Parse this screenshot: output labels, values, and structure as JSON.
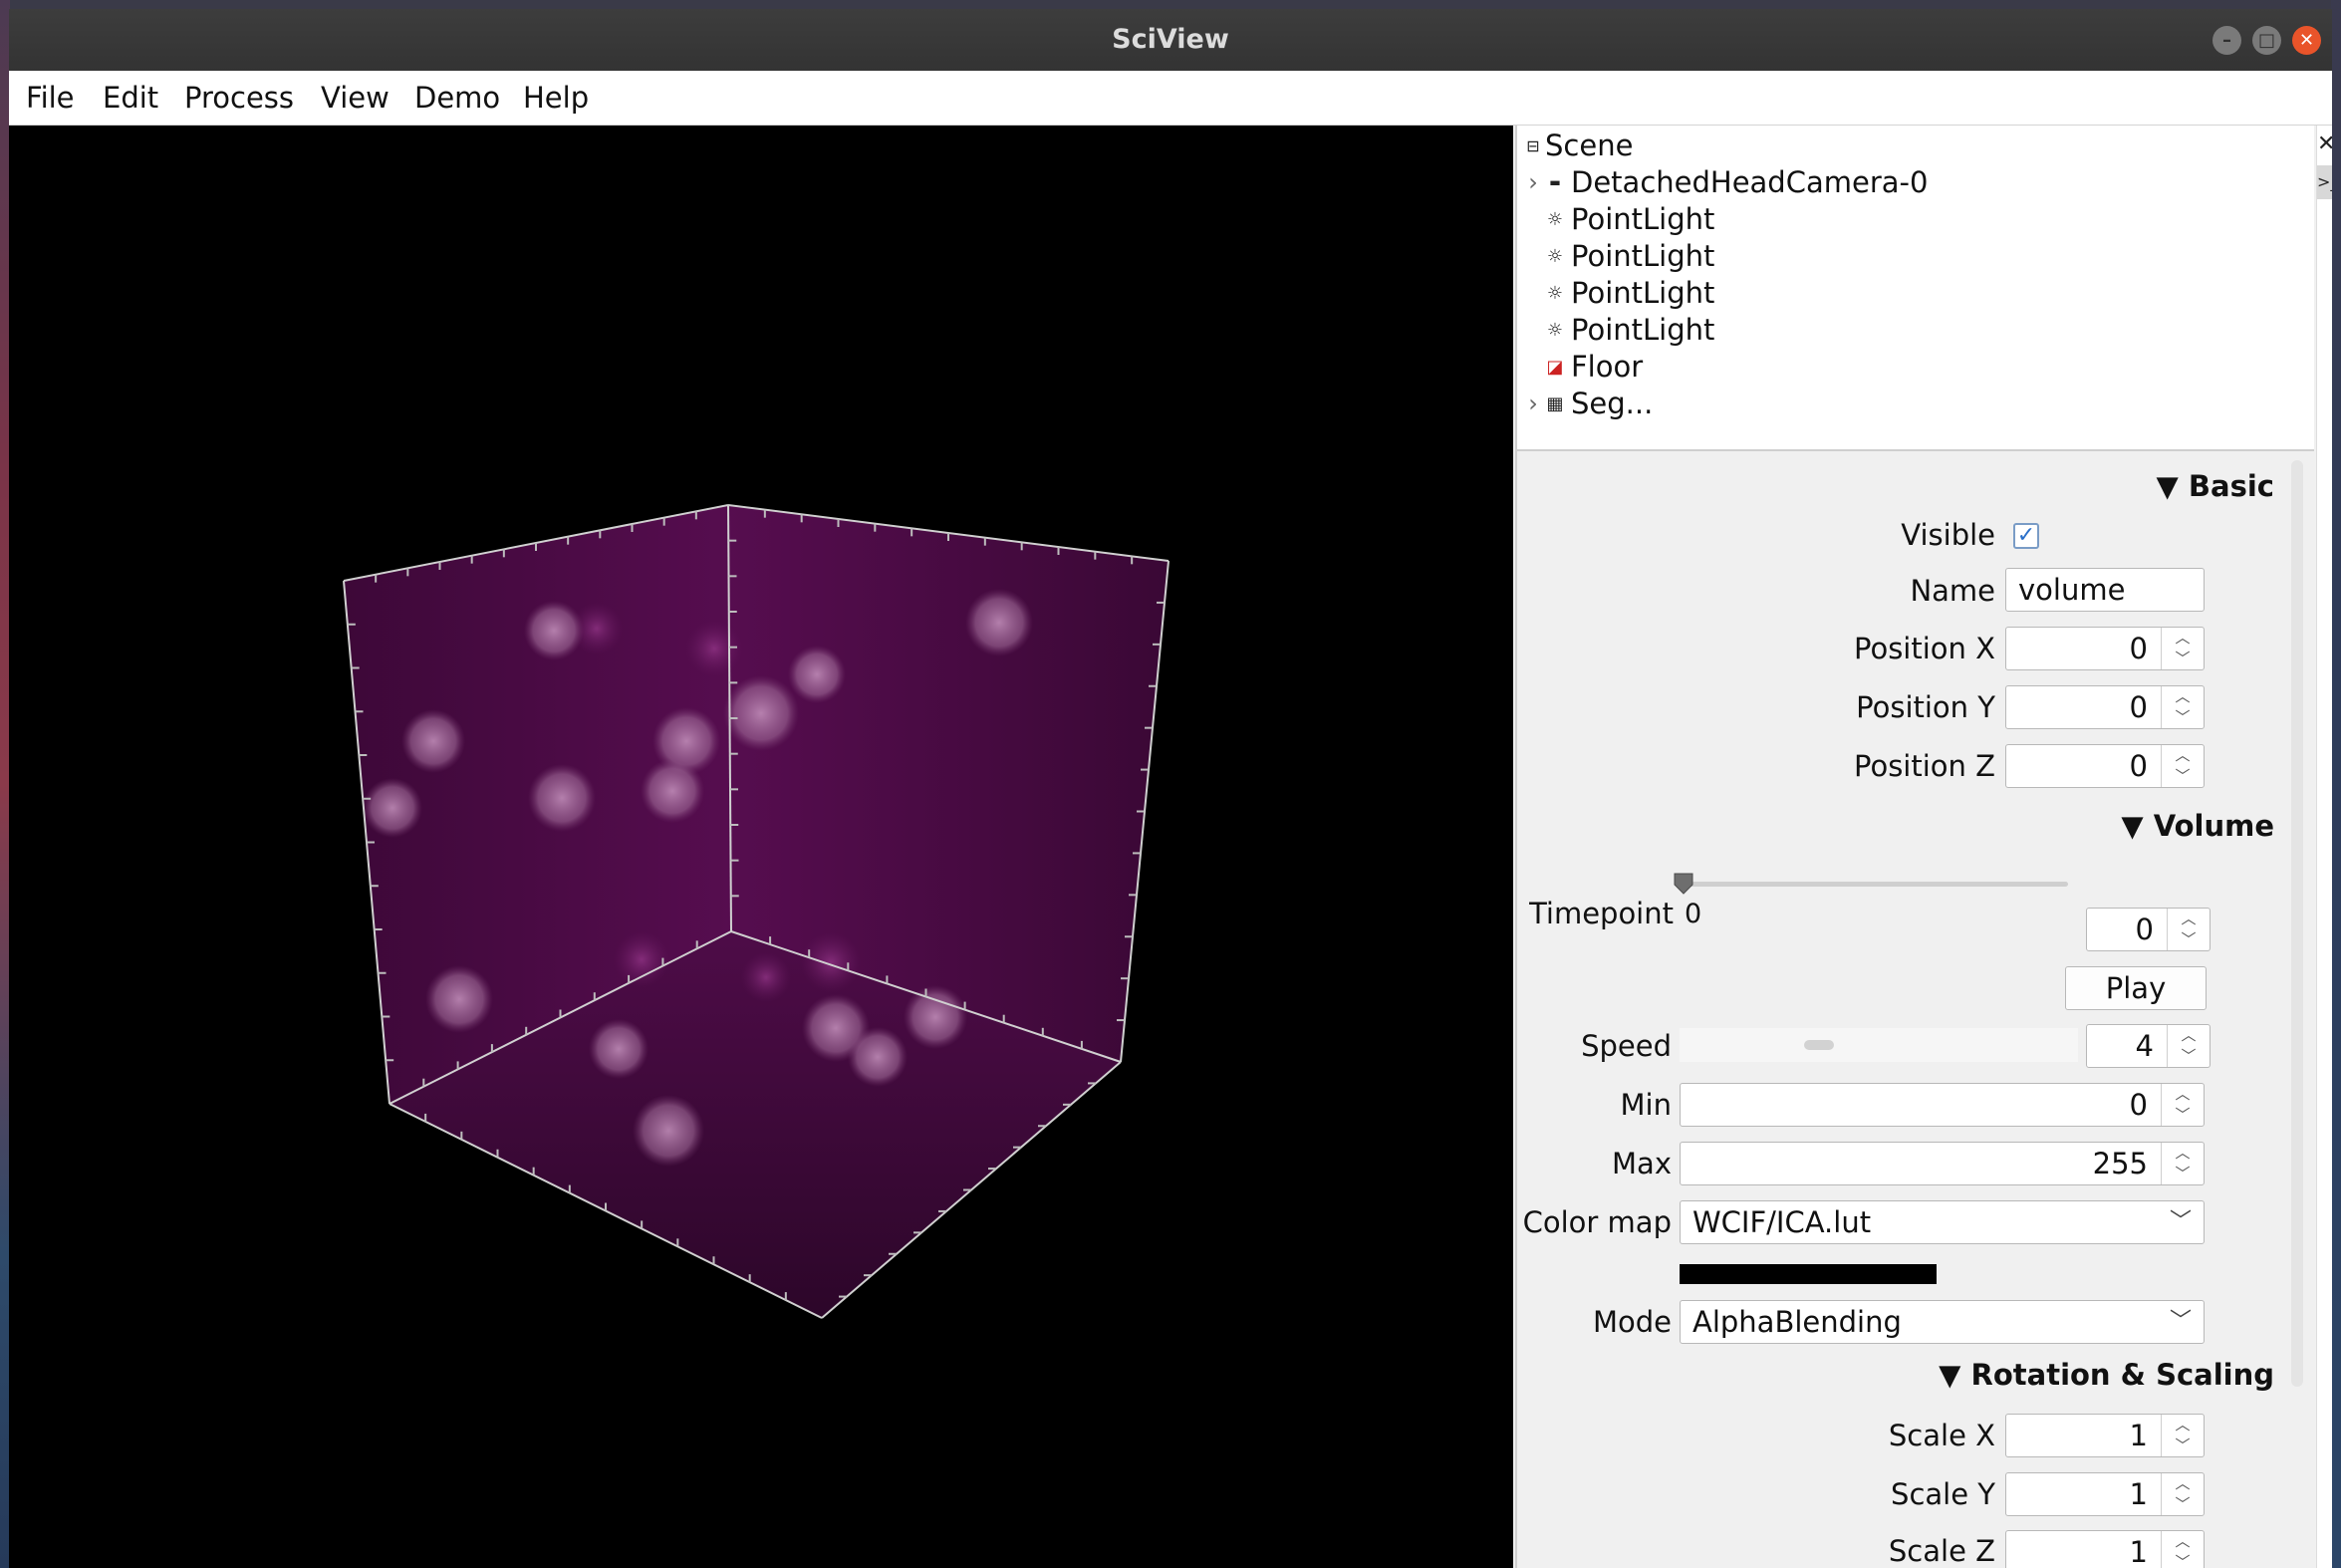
{
  "window": {
    "title": "SciView"
  },
  "menubar": {
    "items": [
      "File",
      "Edit",
      "Process",
      "View",
      "Demo",
      "Help"
    ]
  },
  "scene_tree": {
    "root": "Scene",
    "items": [
      {
        "label": "DetachedHeadCamera-0",
        "icon": "camera-icon",
        "expandable": true
      },
      {
        "label": "PointLight",
        "icon": "light-icon",
        "expandable": false
      },
      {
        "label": "PointLight",
        "icon": "light-icon",
        "expandable": false
      },
      {
        "label": "PointLight",
        "icon": "light-icon",
        "expandable": false
      },
      {
        "label": "PointLight",
        "icon": "light-icon",
        "expandable": false
      },
      {
        "label": "Floor",
        "icon": "floor-icon",
        "expandable": false
      },
      {
        "label": "Seg...",
        "icon": "grid-icon",
        "expandable": true
      }
    ]
  },
  "properties": {
    "basic": {
      "header": "▼ Basic",
      "visible_label": "Visible",
      "visible": true,
      "name_label": "Name",
      "name_value": "volume",
      "pos_x_label": "Position X",
      "pos_x": "0",
      "pos_y_label": "Position Y",
      "pos_y": "0",
      "pos_z_label": "Position Z",
      "pos_z": "0"
    },
    "volume": {
      "header": "▼ Volume",
      "timepoint_label": "Timepoint",
      "timepoint_slider_value": "0",
      "timepoint_value": "0",
      "play_label": "Play",
      "speed_label": "Speed",
      "speed_value": "4",
      "min_label": "Min",
      "min_value": "0",
      "max_label": "Max",
      "max_value": "255",
      "colormap_label": "Color map",
      "colormap_value": "WCIF/ICA.lut",
      "mode_label": "Mode",
      "mode_value": "AlphaBlending"
    },
    "rotation": {
      "header": "▼ Rotation & Scaling",
      "scale_x_label": "Scale X",
      "scale_x": "1",
      "scale_y_label": "Scale Y",
      "scale_y": "1",
      "scale_z_label": "Scale Z",
      "scale_z": "1"
    }
  },
  "colors": {
    "volume_tint": "#4a0a44",
    "blob": "#b07aa8",
    "close_button": "#e9542a",
    "checkbox_accent": "#2a6fc9"
  }
}
